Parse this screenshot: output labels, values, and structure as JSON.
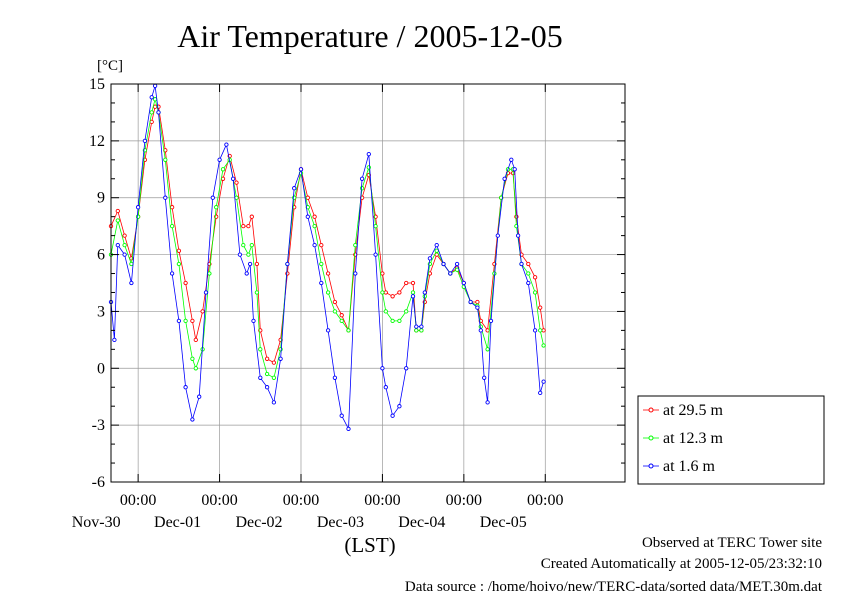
{
  "chart_data": {
    "type": "line",
    "title": "Air Temperature / 2005-12-05",
    "ylabel": "[°C]",
    "xlabel": "(LST)",
    "ylim": [
      -6,
      15
    ],
    "xlim": [
      "2005-11-29T16:00",
      "2005-12-05T23:30"
    ],
    "yticks": [
      "15",
      "12",
      "9",
      "6",
      "3",
      "0",
      "-3",
      "-6"
    ],
    "xticks": [
      {
        "time": "00:00",
        "date": "Nov-30"
      },
      {
        "time": "00:00",
        "date": "Dec-01"
      },
      {
        "time": "00:00",
        "date": "Dec-02"
      },
      {
        "time": "00:00",
        "date": "Dec-03"
      },
      {
        "time": "00:00",
        "date": "Dec-04"
      },
      {
        "time": "00:00",
        "date": "Dec-05"
      }
    ],
    "legend": "right",
    "series": [
      {
        "name": "at 29.5 m",
        "color": "#ff0000",
        "points": [
          [
            "2005-11-29T16:00",
            7.5
          ],
          [
            "2005-11-29T18:00",
            8.3
          ],
          [
            "2005-11-29T20:00",
            7.0
          ],
          [
            "2005-11-29T22:00",
            5.8
          ],
          [
            "2005-11-30T00:00",
            8.0
          ],
          [
            "2005-11-30T02:00",
            11.0
          ],
          [
            "2005-11-30T04:00",
            13.0
          ],
          [
            "2005-11-30T05:00",
            13.8
          ],
          [
            "2005-11-30T06:00",
            13.8
          ],
          [
            "2005-11-30T08:00",
            11.5
          ],
          [
            "2005-11-30T10:00",
            8.5
          ],
          [
            "2005-11-30T12:00",
            6.2
          ],
          [
            "2005-11-30T14:00",
            4.5
          ],
          [
            "2005-11-30T16:00",
            2.5
          ],
          [
            "2005-11-30T17:00",
            1.5
          ],
          [
            "2005-11-30T19:00",
            3.0
          ],
          [
            "2005-11-30T21:00",
            5.5
          ],
          [
            "2005-11-30T23:00",
            8.0
          ],
          [
            "2005-12-01T01:00",
            10.0
          ],
          [
            "2005-12-01T03:00",
            11.2
          ],
          [
            "2005-12-01T05:00",
            9.8
          ],
          [
            "2005-12-01T07:00",
            7.5
          ],
          [
            "2005-12-01T08:30",
            7.5
          ],
          [
            "2005-12-01T09:30",
            8.0
          ],
          [
            "2005-12-01T11:00",
            5.5
          ],
          [
            "2005-12-01T12:00",
            2.0
          ],
          [
            "2005-12-01T14:00",
            0.5
          ],
          [
            "2005-12-01T16:00",
            0.3
          ],
          [
            "2005-12-01T18:00",
            1.5
          ],
          [
            "2005-12-01T20:00",
            5.0
          ],
          [
            "2005-12-01T22:00",
            8.5
          ],
          [
            "2005-12-02T00:00",
            10.5
          ],
          [
            "2005-12-02T02:00",
            9.0
          ],
          [
            "2005-12-02T04:00",
            8.0
          ],
          [
            "2005-12-02T06:00",
            6.5
          ],
          [
            "2005-12-02T08:00",
            5.0
          ],
          [
            "2005-12-02T10:00",
            3.5
          ],
          [
            "2005-12-02T12:00",
            2.8
          ],
          [
            "2005-12-02T14:00",
            2.0
          ],
          [
            "2005-12-02T16:00",
            6.0
          ],
          [
            "2005-12-02T18:00",
            9.0
          ],
          [
            "2005-12-02T20:00",
            10.2
          ],
          [
            "2005-12-02T22:00",
            8.0
          ],
          [
            "2005-12-03T00:00",
            5.0
          ],
          [
            "2005-12-03T01:00",
            4.0
          ],
          [
            "2005-12-03T03:00",
            3.8
          ],
          [
            "2005-12-03T05:00",
            4.0
          ],
          [
            "2005-12-03T07:00",
            4.5
          ],
          [
            "2005-12-03T09:00",
            4.5
          ],
          [
            "2005-12-03T10:00",
            2.0
          ],
          [
            "2005-12-03T11:30",
            2.0
          ],
          [
            "2005-12-03T12:30",
            3.5
          ],
          [
            "2005-12-03T14:00",
            5.0
          ],
          [
            "2005-12-03T16:00",
            6.0
          ],
          [
            "2005-12-03T18:00",
            5.5
          ],
          [
            "2005-12-03T20:00",
            5.0
          ],
          [
            "2005-12-03T22:00",
            5.3
          ],
          [
            "2005-12-04T00:00",
            4.5
          ],
          [
            "2005-12-04T02:00",
            3.5
          ],
          [
            "2005-12-04T04:00",
            3.5
          ],
          [
            "2005-12-04T05:00",
            2.5
          ],
          [
            "2005-12-04T07:00",
            2.0
          ],
          [
            "2005-12-04T09:00",
            5.5
          ],
          [
            "2005-12-04T11:00",
            9.0
          ],
          [
            "2005-12-04T13:00",
            10.3
          ],
          [
            "2005-12-04T14:30",
            10.3
          ],
          [
            "2005-12-04T15:30",
            8.0
          ],
          [
            "2005-12-04T17:00",
            6.0
          ],
          [
            "2005-12-04T19:00",
            5.5
          ],
          [
            "2005-12-04T21:00",
            4.8
          ],
          [
            "2005-12-04T22:30",
            3.2
          ],
          [
            "2005-12-04T23:30",
            2.0
          ]
        ]
      },
      {
        "name": "at 12.3 m",
        "color": "#00ff00",
        "points": [
          [
            "2005-11-29T16:00",
            6.0
          ],
          [
            "2005-11-29T18:00",
            7.8
          ],
          [
            "2005-11-29T20:00",
            6.5
          ],
          [
            "2005-11-29T22:00",
            5.5
          ],
          [
            "2005-11-30T00:00",
            8.0
          ],
          [
            "2005-11-30T02:00",
            11.5
          ],
          [
            "2005-11-30T04:00",
            13.5
          ],
          [
            "2005-11-30T05:00",
            14.2
          ],
          [
            "2005-11-30T06:00",
            13.5
          ],
          [
            "2005-11-30T08:00",
            11.0
          ],
          [
            "2005-11-30T10:00",
            7.5
          ],
          [
            "2005-11-30T12:00",
            5.5
          ],
          [
            "2005-11-30T14:00",
            2.5
          ],
          [
            "2005-11-30T16:00",
            0.5
          ],
          [
            "2005-11-30T17:00",
            0.0
          ],
          [
            "2005-11-30T19:00",
            1.0
          ],
          [
            "2005-11-30T21:00",
            5.0
          ],
          [
            "2005-11-30T23:00",
            8.5
          ],
          [
            "2005-12-01T01:00",
            10.5
          ],
          [
            "2005-12-01T03:00",
            11.0
          ],
          [
            "2005-12-01T05:00",
            9.0
          ],
          [
            "2005-12-01T07:00",
            6.5
          ],
          [
            "2005-12-01T08:30",
            6.0
          ],
          [
            "2005-12-01T09:30",
            6.5
          ],
          [
            "2005-12-01T11:00",
            4.0
          ],
          [
            "2005-12-01T12:00",
            1.0
          ],
          [
            "2005-12-01T14:00",
            -0.3
          ],
          [
            "2005-12-01T16:00",
            -0.5
          ],
          [
            "2005-12-01T18:00",
            1.0
          ],
          [
            "2005-12-01T20:00",
            5.5
          ],
          [
            "2005-12-01T22:00",
            9.0
          ],
          [
            "2005-12-02T00:00",
            10.3
          ],
          [
            "2005-12-02T02:00",
            8.5
          ],
          [
            "2005-12-02T04:00",
            7.5
          ],
          [
            "2005-12-02T06:00",
            5.5
          ],
          [
            "2005-12-02T08:00",
            4.0
          ],
          [
            "2005-12-02T10:00",
            3.0
          ],
          [
            "2005-12-02T12:00",
            2.5
          ],
          [
            "2005-12-02T14:00",
            2.0
          ],
          [
            "2005-12-02T16:00",
            6.5
          ],
          [
            "2005-12-02T18:00",
            9.5
          ],
          [
            "2005-12-02T20:00",
            10.6
          ],
          [
            "2005-12-02T22:00",
            7.5
          ],
          [
            "2005-12-03T00:00",
            4.0
          ],
          [
            "2005-12-03T01:00",
            3.0
          ],
          [
            "2005-12-03T03:00",
            2.5
          ],
          [
            "2005-12-03T05:00",
            2.5
          ],
          [
            "2005-12-03T07:00",
            3.0
          ],
          [
            "2005-12-03T09:00",
            4.0
          ],
          [
            "2005-12-03T10:00",
            2.0
          ],
          [
            "2005-12-03T11:30",
            2.0
          ],
          [
            "2005-12-03T12:30",
            3.8
          ],
          [
            "2005-12-03T14:00",
            5.5
          ],
          [
            "2005-12-03T16:00",
            6.2
          ],
          [
            "2005-12-03T18:00",
            5.5
          ],
          [
            "2005-12-03T20:00",
            5.0
          ],
          [
            "2005-12-03T22:00",
            5.2
          ],
          [
            "2005-12-04T00:00",
            4.3
          ],
          [
            "2005-12-04T02:00",
            3.5
          ],
          [
            "2005-12-04T04:00",
            3.3
          ],
          [
            "2005-12-04T05:00",
            2.2
          ],
          [
            "2005-12-04T07:00",
            1.0
          ],
          [
            "2005-12-04T09:00",
            5.0
          ],
          [
            "2005-12-04T11:00",
            9.0
          ],
          [
            "2005-12-04T13:00",
            10.5
          ],
          [
            "2005-12-04T14:30",
            10.5
          ],
          [
            "2005-12-04T15:30",
            7.5
          ],
          [
            "2005-12-04T17:00",
            5.5
          ],
          [
            "2005-12-04T19:00",
            5.0
          ],
          [
            "2005-12-04T21:00",
            4.0
          ],
          [
            "2005-12-04T22:30",
            2.0
          ],
          [
            "2005-12-04T23:30",
            1.2
          ]
        ]
      },
      {
        "name": "at 1.6 m",
        "color": "#0000ff",
        "points": [
          [
            "2005-11-29T16:00",
            3.5
          ],
          [
            "2005-11-29T17:00",
            1.5
          ],
          [
            "2005-11-29T18:00",
            6.5
          ],
          [
            "2005-11-29T20:00",
            6.0
          ],
          [
            "2005-11-29T22:00",
            4.5
          ],
          [
            "2005-11-30T00:00",
            8.5
          ],
          [
            "2005-11-30T02:00",
            12.0
          ],
          [
            "2005-11-30T04:00",
            14.3
          ],
          [
            "2005-11-30T05:00",
            14.9
          ],
          [
            "2005-11-30T06:00",
            13.5
          ],
          [
            "2005-11-30T08:00",
            9.0
          ],
          [
            "2005-11-30T10:00",
            5.0
          ],
          [
            "2005-11-30T12:00",
            2.5
          ],
          [
            "2005-11-30T14:00",
            -1.0
          ],
          [
            "2005-11-30T16:00",
            -2.7
          ],
          [
            "2005-11-30T18:00",
            -1.5
          ],
          [
            "2005-11-30T20:00",
            4.0
          ],
          [
            "2005-11-30T22:00",
            9.0
          ],
          [
            "2005-12-01T00:00",
            11.0
          ],
          [
            "2005-12-01T02:00",
            11.8
          ],
          [
            "2005-12-01T04:00",
            10.0
          ],
          [
            "2005-12-01T06:00",
            6.0
          ],
          [
            "2005-12-01T08:00",
            5.0
          ],
          [
            "2005-12-01T09:00",
            5.5
          ],
          [
            "2005-12-01T10:00",
            2.5
          ],
          [
            "2005-12-01T12:00",
            -0.5
          ],
          [
            "2005-12-01T14:00",
            -1.0
          ],
          [
            "2005-12-01T16:00",
            -1.8
          ],
          [
            "2005-12-01T18:00",
            0.5
          ],
          [
            "2005-12-01T20:00",
            5.5
          ],
          [
            "2005-12-01T22:00",
            9.5
          ],
          [
            "2005-12-02T00:00",
            10.5
          ],
          [
            "2005-12-02T02:00",
            8.0
          ],
          [
            "2005-12-02T04:00",
            6.5
          ],
          [
            "2005-12-02T06:00",
            4.5
          ],
          [
            "2005-12-02T08:00",
            2.0
          ],
          [
            "2005-12-02T10:00",
            -0.5
          ],
          [
            "2005-12-02T12:00",
            -2.5
          ],
          [
            "2005-12-02T14:00",
            -3.2
          ],
          [
            "2005-12-02T16:00",
            5.0
          ],
          [
            "2005-12-02T18:00",
            10.0
          ],
          [
            "2005-12-02T20:00",
            11.3
          ],
          [
            "2005-12-02T22:00",
            6.0
          ],
          [
            "2005-12-03T00:00",
            0.0
          ],
          [
            "2005-12-03T01:00",
            -1.0
          ],
          [
            "2005-12-03T03:00",
            -2.5
          ],
          [
            "2005-12-03T05:00",
            -2.0
          ],
          [
            "2005-12-03T07:00",
            0.0
          ],
          [
            "2005-12-03T09:00",
            3.8
          ],
          [
            "2005-12-03T10:00",
            2.2
          ],
          [
            "2005-12-03T11:30",
            2.2
          ],
          [
            "2005-12-03T12:30",
            4.0
          ],
          [
            "2005-12-03T14:00",
            5.8
          ],
          [
            "2005-12-03T16:00",
            6.5
          ],
          [
            "2005-12-03T18:00",
            5.5
          ],
          [
            "2005-12-03T20:00",
            5.0
          ],
          [
            "2005-12-03T22:00",
            5.5
          ],
          [
            "2005-12-04T00:00",
            4.5
          ],
          [
            "2005-12-04T02:00",
            3.5
          ],
          [
            "2005-12-04T04:00",
            3.2
          ],
          [
            "2005-12-04T05:00",
            2.0
          ],
          [
            "2005-12-04T06:00",
            -0.5
          ],
          [
            "2005-12-04T07:00",
            -1.8
          ],
          [
            "2005-12-04T08:00",
            2.5
          ],
          [
            "2005-12-04T10:00",
            7.0
          ],
          [
            "2005-12-04T12:00",
            10.0
          ],
          [
            "2005-12-04T14:00",
            11.0
          ],
          [
            "2005-12-04T15:00",
            10.5
          ],
          [
            "2005-12-04T16:00",
            7.0
          ],
          [
            "2005-12-04T17:00",
            5.5
          ],
          [
            "2005-12-04T19:00",
            4.5
          ],
          [
            "2005-12-04T21:00",
            2.0
          ],
          [
            "2005-12-04T22:30",
            -1.3
          ],
          [
            "2005-12-04T23:30",
            -0.7
          ]
        ]
      }
    ]
  },
  "footer": {
    "site": "Observed at TERC Tower site",
    "created": "Created Automatically at 2005-12-05/23:32:10",
    "source": "Data source : /home/hoivo/new/TERC-data/sorted  data/MET.30m.dat"
  }
}
